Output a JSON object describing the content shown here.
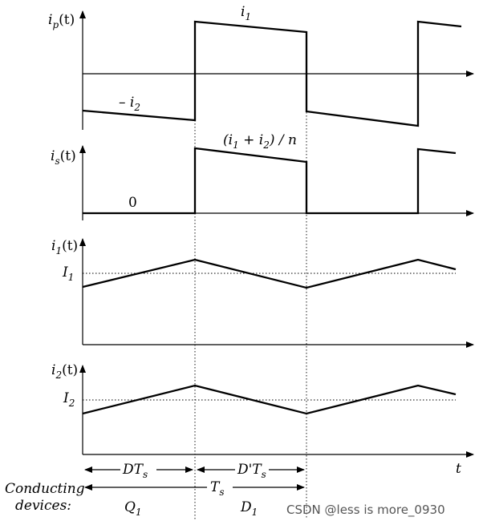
{
  "labels": {
    "ip_axis": {
      "main": "i",
      "sub": "p",
      "tail": "(t)"
    },
    "i1_top": {
      "main": "i",
      "sub": "1"
    },
    "neg_i2": {
      "main": "– i",
      "sub": "2"
    },
    "is_axis": {
      "main": "i",
      "sub": "s",
      "tail": "(t)"
    },
    "is_high": {
      "pre": "(i",
      "sub1": "1",
      "mid": " + i",
      "sub2": "2",
      "post": ") / n"
    },
    "is_zero": "0",
    "i1_axis": {
      "main": "i",
      "sub": "1",
      "tail": "(t)"
    },
    "I1": {
      "main": "I",
      "sub": "1"
    },
    "i2_axis": {
      "main": "i",
      "sub": "2",
      "tail": "(t)"
    },
    "I2": {
      "main": "I",
      "sub": "2"
    },
    "t_axis": "t",
    "DTs": {
      "main": "DT",
      "sub": "s"
    },
    "DpTs": {
      "main": "D'T",
      "sub": "s"
    },
    "Ts": {
      "main": "T",
      "sub": "s"
    },
    "conducting_line1": "Conducting",
    "conducting_line2": "devices:",
    "Q1": {
      "main": "Q",
      "sub": "1"
    },
    "D1": {
      "main": "D",
      "sub": "1"
    }
  },
  "watermark": "CSDN @less is more_0930",
  "colors": {
    "line": "#000000",
    "background": "#ffffff",
    "watermark": "#555555"
  }
}
